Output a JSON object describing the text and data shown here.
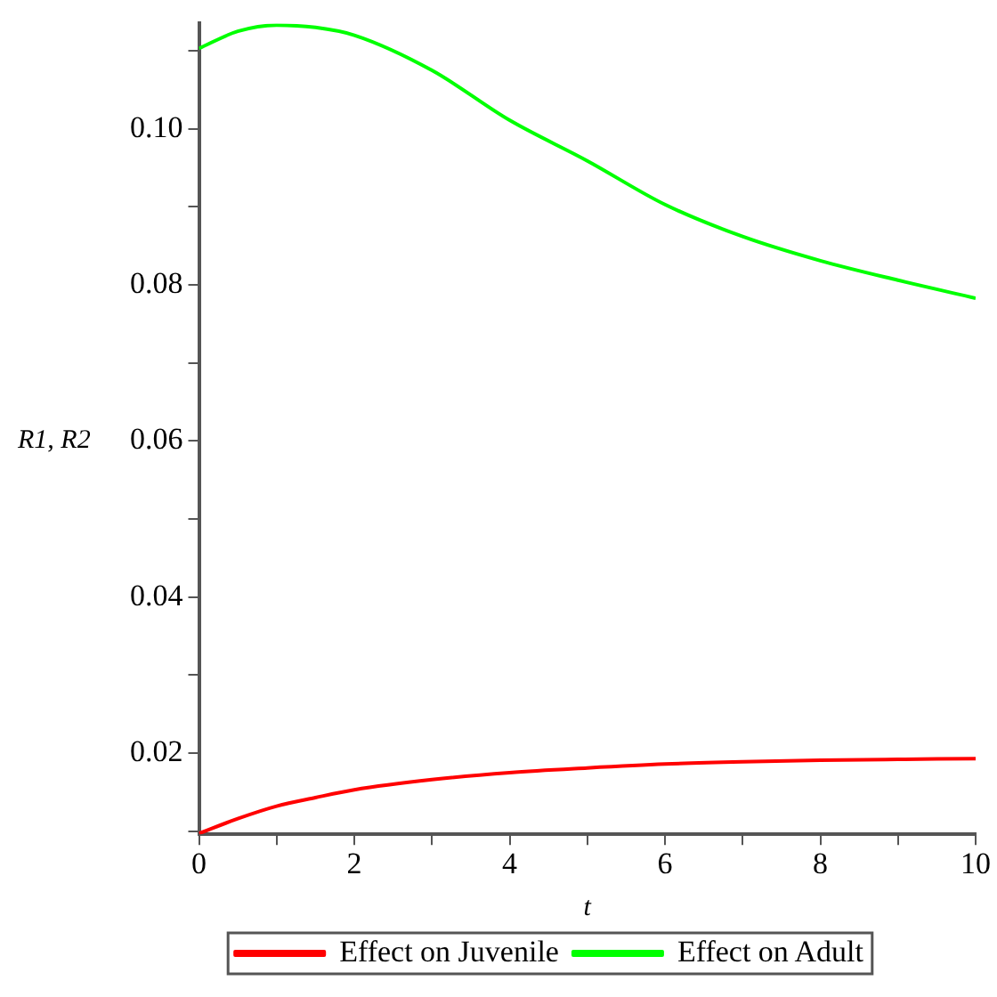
{
  "chart_data": {
    "type": "line",
    "xlabel": "t",
    "ylabel": "R1, R2",
    "legend": "bottom",
    "grid": false,
    "marker": "none",
    "line_style": "solid",
    "x": [
      0,
      0.5,
      1,
      1.5,
      2,
      3,
      4,
      5,
      6,
      7,
      8,
      9,
      10
    ],
    "xlim": [
      0,
      10
    ],
    "xticks": [
      0,
      {
        "value": 1,
        "label": null
      },
      2,
      {
        "value": 3,
        "label": null
      },
      4,
      {
        "value": 5,
        "label": null
      },
      6,
      {
        "value": 7,
        "label": null
      },
      8,
      {
        "value": 9,
        "label": null
      },
      10
    ],
    "ylim": [
      0.0096,
      0.1135
    ],
    "yticks": [
      {
        "value": 0.01,
        "label": null
      },
      {
        "value": 0.02,
        "label": "0.02"
      },
      {
        "value": 0.03,
        "label": null
      },
      {
        "value": 0.04,
        "label": "0.04"
      },
      {
        "value": 0.05,
        "label": null
      },
      {
        "value": 0.06,
        "label": "0.06"
      },
      {
        "value": 0.07,
        "label": null
      },
      {
        "value": 0.08,
        "label": "0.08"
      },
      {
        "value": 0.09,
        "label": null
      },
      {
        "value": 0.1,
        "label": "0.10"
      },
      {
        "value": 0.11,
        "label": null
      }
    ],
    "series": [
      {
        "name": "Effect on Juvenile",
        "color": "#ff0000",
        "values": [
          0.0097,
          0.0116,
          0.0132,
          0.0143,
          0.0153,
          0.0166,
          0.0175,
          0.0181,
          0.0186,
          0.0189,
          0.0191,
          0.0192,
          0.0193
        ]
      },
      {
        "name": "Effect on Adult",
        "color": "#00ff00",
        "values": [
          0.1103,
          0.1125,
          0.1133,
          0.113,
          0.112,
          0.1075,
          0.1011,
          0.0959,
          0.0903,
          0.0862,
          0.0831,
          0.0806,
          0.0783
        ]
      }
    ]
  }
}
